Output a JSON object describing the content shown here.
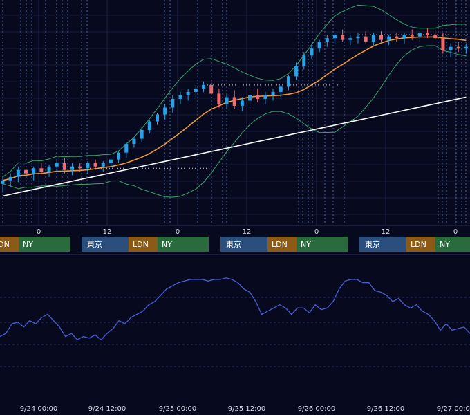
{
  "chart_data": [
    {
      "type": "candlestick",
      "overlays": [
        {
          "name": "",
          "kind": "moving-average",
          "color": "#f39a2c"
        },
        {
          "name": "",
          "kind": "moving-average-long",
          "color": "#ffffff"
        },
        {
          "name": "",
          "kind": "bollinger-band",
          "color": "#39a66b"
        }
      ],
      "up_color": "#29a3e6",
      "down_color": "#f06b6b",
      "hour_ticks": [
        "0",
        "12",
        "0",
        "12",
        "0",
        "12",
        "0"
      ],
      "sessions": [
        {
          "tokyo": "",
          "london": "LDN",
          "newyork": "NY"
        },
        {
          "tokyo": "東京",
          "london": "LDN",
          "newyork": "NY"
        },
        {
          "tokyo": "東京",
          "london": "LDN",
          "newyork": "NY"
        },
        {
          "tokyo": "東京",
          "london": "LDN",
          "newyork": "NY"
        }
      ],
      "session_colors": {
        "tokyo": "#2a4f7d",
        "london": "#8a5a16",
        "newyork": "#2a6b3d"
      },
      "candles": [
        {
          "o": 0.29,
          "h": 0.33,
          "l": 0.24,
          "c": 0.31
        },
        {
          "o": 0.31,
          "h": 0.35,
          "l": 0.27,
          "c": 0.33
        },
        {
          "o": 0.33,
          "h": 0.39,
          "l": 0.3,
          "c": 0.37
        },
        {
          "o": 0.37,
          "h": 0.4,
          "l": 0.33,
          "c": 0.35
        },
        {
          "o": 0.35,
          "h": 0.39,
          "l": 0.31,
          "c": 0.38
        },
        {
          "o": 0.38,
          "h": 0.41,
          "l": 0.35,
          "c": 0.36
        },
        {
          "o": 0.36,
          "h": 0.4,
          "l": 0.33,
          "c": 0.39
        },
        {
          "o": 0.39,
          "h": 0.43,
          "l": 0.36,
          "c": 0.41
        },
        {
          "o": 0.41,
          "h": 0.44,
          "l": 0.35,
          "c": 0.37
        },
        {
          "o": 0.37,
          "h": 0.41,
          "l": 0.34,
          "c": 0.39
        },
        {
          "o": 0.39,
          "h": 0.41,
          "l": 0.36,
          "c": 0.38
        },
        {
          "o": 0.38,
          "h": 0.42,
          "l": 0.35,
          "c": 0.41
        },
        {
          "o": 0.41,
          "h": 0.43,
          "l": 0.37,
          "c": 0.39
        },
        {
          "o": 0.39,
          "h": 0.42,
          "l": 0.36,
          "c": 0.41
        },
        {
          "o": 0.41,
          "h": 0.44,
          "l": 0.39,
          "c": 0.43
        },
        {
          "o": 0.43,
          "h": 0.48,
          "l": 0.41,
          "c": 0.47
        },
        {
          "o": 0.47,
          "h": 0.53,
          "l": 0.44,
          "c": 0.52
        },
        {
          "o": 0.52,
          "h": 0.56,
          "l": 0.5,
          "c": 0.55
        },
        {
          "o": 0.55,
          "h": 0.62,
          "l": 0.53,
          "c": 0.6
        },
        {
          "o": 0.6,
          "h": 0.66,
          "l": 0.58,
          "c": 0.65
        },
        {
          "o": 0.65,
          "h": 0.7,
          "l": 0.63,
          "c": 0.69
        },
        {
          "o": 0.69,
          "h": 0.75,
          "l": 0.66,
          "c": 0.73
        },
        {
          "o": 0.73,
          "h": 0.8,
          "l": 0.7,
          "c": 0.78
        },
        {
          "o": 0.78,
          "h": 0.82,
          "l": 0.75,
          "c": 0.8
        },
        {
          "o": 0.8,
          "h": 0.84,
          "l": 0.77,
          "c": 0.82
        },
        {
          "o": 0.82,
          "h": 0.86,
          "l": 0.79,
          "c": 0.84
        },
        {
          "o": 0.84,
          "h": 0.88,
          "l": 0.82,
          "c": 0.86
        },
        {
          "o": 0.86,
          "h": 0.89,
          "l": 0.8,
          "c": 0.81
        },
        {
          "o": 0.81,
          "h": 0.84,
          "l": 0.73,
          "c": 0.75
        },
        {
          "o": 0.75,
          "h": 0.8,
          "l": 0.72,
          "c": 0.79
        },
        {
          "o": 0.79,
          "h": 0.83,
          "l": 0.72,
          "c": 0.74
        },
        {
          "o": 0.74,
          "h": 0.79,
          "l": 0.71,
          "c": 0.77
        },
        {
          "o": 0.77,
          "h": 0.82,
          "l": 0.74,
          "c": 0.8
        },
        {
          "o": 0.8,
          "h": 0.84,
          "l": 0.76,
          "c": 0.78
        },
        {
          "o": 0.78,
          "h": 0.82,
          "l": 0.75,
          "c": 0.8
        },
        {
          "o": 0.8,
          "h": 0.84,
          "l": 0.77,
          "c": 0.82
        },
        {
          "o": 0.82,
          "h": 0.86,
          "l": 0.79,
          "c": 0.85
        },
        {
          "o": 0.85,
          "h": 0.92,
          "l": 0.83,
          "c": 0.91
        },
        {
          "o": 0.91,
          "h": 0.99,
          "l": 0.89,
          "c": 0.97
        },
        {
          "o": 0.97,
          "h": 1.05,
          "l": 0.95,
          "c": 1.03
        },
        {
          "o": 1.03,
          "h": 1.09,
          "l": 1.01,
          "c": 1.07
        },
        {
          "o": 1.07,
          "h": 1.12,
          "l": 1.05,
          "c": 1.11
        },
        {
          "o": 1.11,
          "h": 1.15,
          "l": 1.08,
          "c": 1.13
        },
        {
          "o": 1.13,
          "h": 1.16,
          "l": 1.1,
          "c": 1.15
        },
        {
          "o": 1.15,
          "h": 1.18,
          "l": 1.11,
          "c": 1.12
        },
        {
          "o": 1.12,
          "h": 1.15,
          "l": 1.09,
          "c": 1.13
        },
        {
          "o": 1.13,
          "h": 1.16,
          "l": 1.1,
          "c": 1.14
        },
        {
          "o": 1.14,
          "h": 1.17,
          "l": 1.1,
          "c": 1.11
        },
        {
          "o": 1.11,
          "h": 1.16,
          "l": 1.09,
          "c": 1.15
        },
        {
          "o": 1.15,
          "h": 1.17,
          "l": 1.11,
          "c": 1.12
        },
        {
          "o": 1.12,
          "h": 1.15,
          "l": 1.09,
          "c": 1.14
        },
        {
          "o": 1.14,
          "h": 1.16,
          "l": 1.11,
          "c": 1.13
        },
        {
          "o": 1.13,
          "h": 1.16,
          "l": 1.1,
          "c": 1.15
        },
        {
          "o": 1.15,
          "h": 1.18,
          "l": 1.12,
          "c": 1.14
        },
        {
          "o": 1.14,
          "h": 1.17,
          "l": 1.11,
          "c": 1.16
        },
        {
          "o": 1.16,
          "h": 1.19,
          "l": 1.13,
          "c": 1.15
        },
        {
          "o": 1.15,
          "h": 1.18,
          "l": 1.12,
          "c": 1.13
        },
        {
          "o": 1.13,
          "h": 1.16,
          "l": 1.04,
          "c": 1.06
        },
        {
          "o": 1.06,
          "h": 1.1,
          "l": 1.02,
          "c": 1.08
        },
        {
          "o": 1.08,
          "h": 1.11,
          "l": 1.05,
          "c": 1.07
        },
        {
          "o": 1.07,
          "h": 1.1,
          "l": 1.04,
          "c": 1.08
        }
      ]
    },
    {
      "type": "line",
      "color": "#4a5fd6",
      "x_tick_labels": [
        "9/24 00:00",
        "9/24 12:00",
        "9/25 00:00",
        "9/25 12:00",
        "9/26 00:00",
        "9/26 12:00",
        "9/27 00:00"
      ],
      "values": [
        22,
        24,
        30,
        31,
        28,
        32,
        30,
        34,
        36,
        32,
        28,
        22,
        24,
        20,
        22,
        21,
        23,
        20,
        24,
        27,
        32,
        30,
        34,
        36,
        38,
        42,
        44,
        48,
        52,
        54,
        56,
        57,
        58,
        58,
        58,
        57,
        58,
        58,
        59,
        58,
        56,
        52,
        50,
        44,
        36,
        38,
        40,
        42,
        40,
        36,
        40,
        40,
        37,
        42,
        39,
        40,
        44,
        52,
        57,
        58,
        58,
        56,
        56,
        51,
        50,
        48,
        44,
        46,
        42,
        40,
        42,
        38,
        36,
        32,
        26,
        30,
        26,
        27,
        28,
        24
      ]
    }
  ]
}
